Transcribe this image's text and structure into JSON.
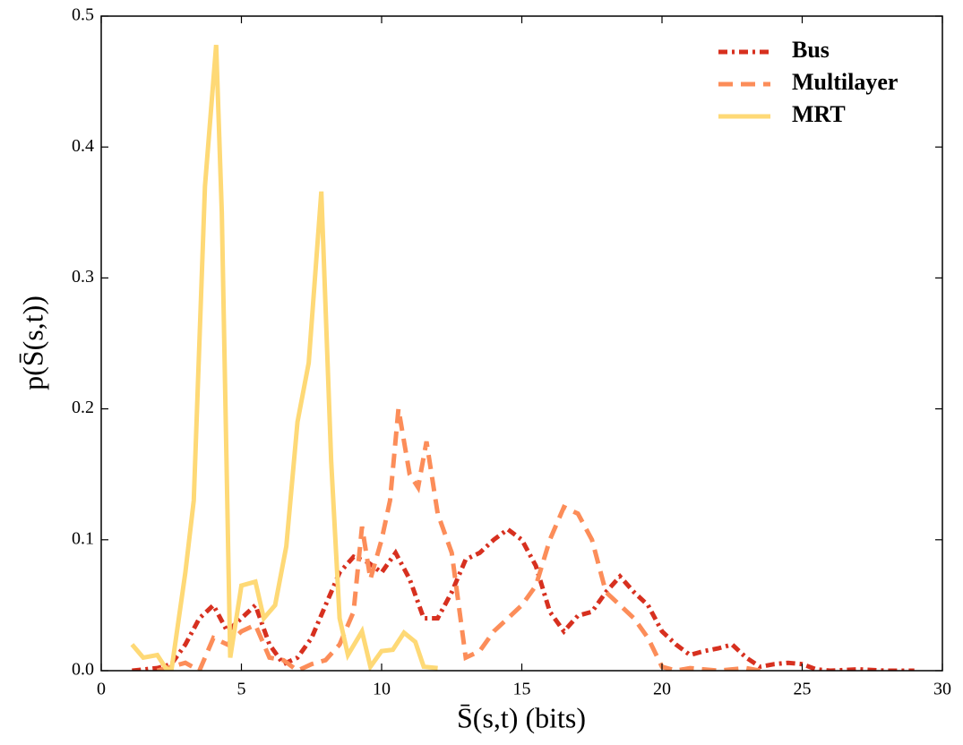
{
  "chart_data": {
    "type": "line",
    "xlabel": "S̄(s,t) (bits)",
    "ylabel": "p(S̄(s,t))",
    "xlim": [
      0,
      30
    ],
    "xticks": [
      0,
      5,
      10,
      15,
      20,
      25,
      30
    ],
    "ylim": [
      0,
      0.5
    ],
    "yticks": [
      {
        "value": 0,
        "label": "0.0"
      },
      0.1,
      0.2,
      0.3,
      0.4,
      0.5
    ],
    "legend": "upper right",
    "series": [
      {
        "name": "Bus",
        "color": "#d7301f",
        "linestyle": "dashdot",
        "x": [
          1.1,
          2,
          2.5,
          3,
          3.5,
          4,
          4.5,
          5,
          5.5,
          6,
          6.5,
          7,
          7.5,
          8,
          8.5,
          9,
          9.5,
          10,
          10.5,
          11,
          11.5,
          12,
          12.5,
          13,
          13.5,
          14,
          14.5,
          15,
          15.5,
          16,
          16.5,
          17,
          17.5,
          18,
          18.5,
          19,
          19.5,
          20,
          20.5,
          21,
          21.5,
          22,
          22.5,
          23,
          23.5,
          24,
          24.5,
          25,
          25.5,
          26,
          27,
          28,
          29
        ],
        "values": [
          0.0,
          0.002,
          0.005,
          0.02,
          0.04,
          0.05,
          0.03,
          0.04,
          0.05,
          0.02,
          0.005,
          0.01,
          0.025,
          0.05,
          0.075,
          0.087,
          0.083,
          0.075,
          0.09,
          0.07,
          0.04,
          0.04,
          0.06,
          0.085,
          0.09,
          0.1,
          0.108,
          0.1,
          0.08,
          0.045,
          0.03,
          0.042,
          0.045,
          0.06,
          0.072,
          0.06,
          0.05,
          0.03,
          0.02,
          0.012,
          0.015,
          0.017,
          0.02,
          0.01,
          0.003,
          0.005,
          0.006,
          0.005,
          0.001,
          0.0,
          0.001,
          0.0,
          0.0
        ]
      },
      {
        "name": "Multilayer",
        "color": "#fc8d59",
        "linestyle": "dashed",
        "x": [
          2,
          2.5,
          3,
          3.5,
          4,
          4.5,
          5,
          5.5,
          6,
          6.5,
          7,
          7.5,
          8,
          8.5,
          9,
          9.3,
          9.6,
          10,
          10.3,
          10.6,
          11,
          11.3,
          11.6,
          12,
          12.5,
          13,
          13.5,
          14,
          14.5,
          15,
          15.5,
          16,
          16.5,
          17,
          17.5,
          18,
          18.5,
          19,
          19.5,
          20,
          20.5,
          21,
          22,
          23,
          23.5
        ],
        "values": [
          0.0,
          0.003,
          0.006,
          0.0,
          0.025,
          0.02,
          0.03,
          0.035,
          0.01,
          0.008,
          0.0,
          0.005,
          0.008,
          0.02,
          0.045,
          0.11,
          0.07,
          0.1,
          0.13,
          0.2,
          0.15,
          0.14,
          0.175,
          0.12,
          0.09,
          0.01,
          0.015,
          0.03,
          0.04,
          0.05,
          0.065,
          0.1,
          0.125,
          0.12,
          0.1,
          0.06,
          0.05,
          0.04,
          0.025,
          0.003,
          0.0,
          0.002,
          0.0,
          0.002,
          0.0
        ]
      },
      {
        "name": "MRT",
        "color": "#fed976",
        "linestyle": "solid",
        "x": [
          1.1,
          1.5,
          2,
          2.3,
          2.5,
          3,
          3.3,
          3.7,
          4.1,
          4.3,
          4.6,
          5,
          5.5,
          5.8,
          6.2,
          6.6,
          7,
          7.4,
          7.85,
          8.2,
          8.5,
          8.8,
          9.3,
          9.6,
          10,
          10.4,
          10.8,
          11.2,
          11.5,
          12
        ],
        "values": [
          0.02,
          0.01,
          0.012,
          0.002,
          0.0,
          0.075,
          0.13,
          0.37,
          0.478,
          0.35,
          0.01,
          0.065,
          0.068,
          0.04,
          0.05,
          0.095,
          0.19,
          0.235,
          0.366,
          0.16,
          0.04,
          0.012,
          0.03,
          0.003,
          0.015,
          0.016,
          0.029,
          0.022,
          0.003,
          0.002
        ]
      }
    ]
  }
}
